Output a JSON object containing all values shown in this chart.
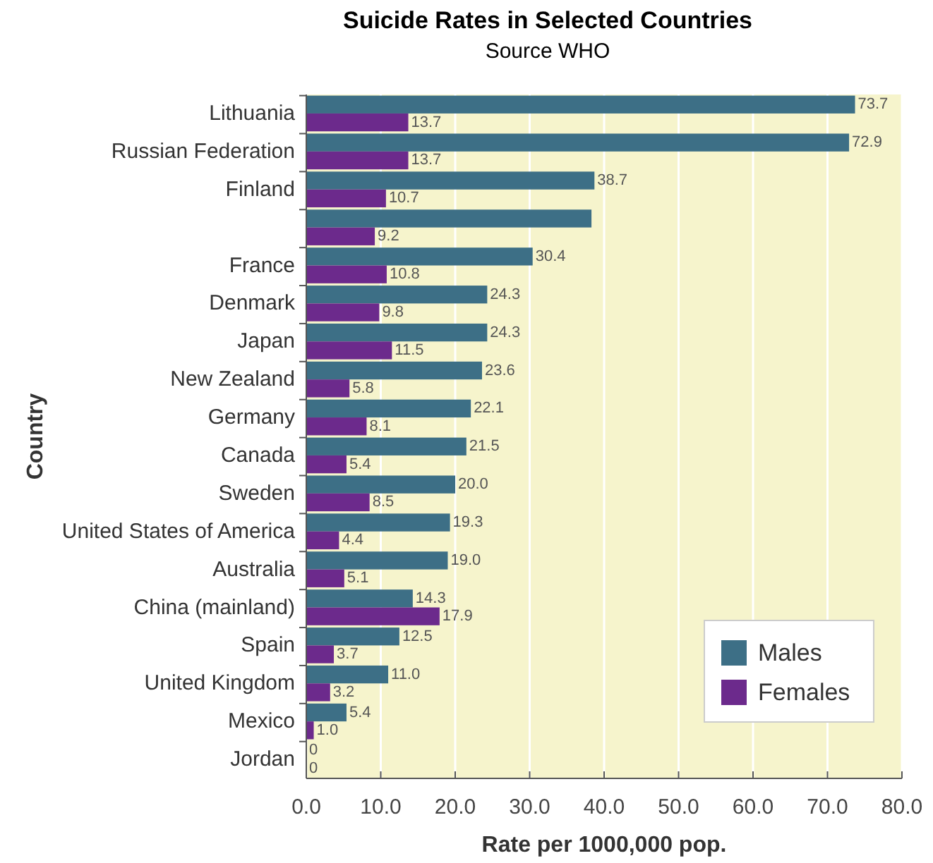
{
  "chart_data": {
    "type": "bar",
    "orientation": "horizontal",
    "title": "Suicide Rates in Selected Countries",
    "subtitle": "Source WHO",
    "xlabel": "Rate per 1000,000 pop.",
    "ylabel": "Country",
    "categories": [
      "Lithuania",
      "Russian Federation",
      "Finland",
      null,
      "France",
      "Denmark",
      "Japan",
      "New Zealand",
      "Germany",
      "Canada",
      "Sweden",
      "United States of America",
      "Australia",
      "China (mainland)",
      "Spain",
      "United Kingdom",
      "Mexico",
      "Jordan"
    ],
    "series": [
      {
        "name": "Males",
        "color": "#3d6f86",
        "values": [
          73.7,
          72.9,
          38.7,
          38.3,
          30.4,
          24.3,
          24.3,
          23.6,
          22.1,
          21.5,
          20.0,
          19.3,
          19.0,
          14.3,
          12.5,
          11.0,
          5.4,
          0
        ],
        "value_labels": [
          "73.7",
          "72.9",
          "38.7",
          null,
          "30.4",
          "24.3",
          "24.3",
          "23.6",
          "22.1",
          "21.5",
          "20.0",
          "19.3",
          "19.0",
          "14.3",
          "12.5",
          "11.0",
          "5.4",
          "0"
        ]
      },
      {
        "name": "Females",
        "color": "#6c2a8c",
        "values": [
          13.7,
          13.7,
          10.7,
          9.2,
          10.8,
          9.8,
          11.5,
          5.8,
          8.1,
          5.4,
          8.5,
          4.4,
          5.1,
          17.9,
          3.7,
          3.2,
          1.0,
          0
        ],
        "value_labels": [
          "13.7",
          "13.7",
          "10.7",
          "9.2",
          "10.8",
          "9.8",
          "11.5",
          "5.8",
          "8.1",
          "5.4",
          "8.5",
          "4.4",
          "5.1",
          "17.9",
          "3.7",
          "3.2",
          "1.0",
          "0"
        ]
      }
    ],
    "xlim": [
      0,
      80
    ],
    "xticks": [
      {
        "value": 0,
        "label": "0.0"
      },
      {
        "value": 10,
        "label": "10.0"
      },
      {
        "value": 20,
        "label": "20.0"
      },
      {
        "value": 30,
        "label": "30.0"
      },
      {
        "value": 40,
        "label": "40.0"
      },
      {
        "value": 50,
        "label": "50.0"
      },
      {
        "value": 60,
        "label": "60.0"
      },
      {
        "value": 70,
        "label": "70.0"
      },
      {
        "value": 80,
        "label": "80.0"
      }
    ],
    "grid": "x",
    "legend": "bottom right"
  }
}
